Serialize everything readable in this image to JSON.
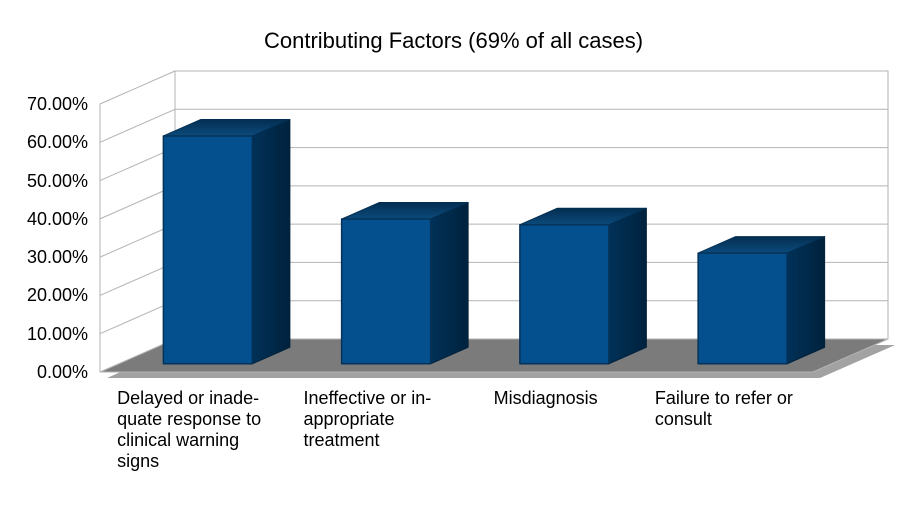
{
  "chart_data": {
    "type": "bar",
    "style": "3d-column",
    "title": "Contributing Factors (69% of all cases)",
    "categories": [
      "Delayed or inadequate response to clinical warning signs",
      "Ineffective or inappropriate treatment",
      "Misdiagnosis",
      "Failure to refer or consult"
    ],
    "category_display_lines": [
      [
        "Delayed or inade-",
        "quate response to",
        "clinical warning",
        "signs"
      ],
      [
        "Ineffective or in-",
        "appropriate",
        "treatment"
      ],
      [
        "Misdiagnosis"
      ],
      [
        "Failure to refer or",
        "consult"
      ]
    ],
    "category_slugs": [
      "delayed-or-inadequate-response-to-clinical-warning-signs",
      "ineffective-or-inappropriate-treatment",
      "misdiagnosis",
      "failure-to-refer-or-consult"
    ],
    "values": [
      59.5,
      37.8,
      36.3,
      28.9
    ],
    "unit": "%",
    "xlabel": "",
    "ylabel": "",
    "ylim": [
      0,
      70
    ],
    "y_tick_step": 10,
    "y_tick_labels": [
      "0.00%",
      "10.00%",
      "20.00%",
      "30.00%",
      "40.00%",
      "50.00%",
      "60.00%",
      "70.00%"
    ],
    "grid": true,
    "legend": null,
    "colors": {
      "bar_front": "#04508e",
      "bar_front_edge": "#063258",
      "bar_top_light": "#0b4a7c",
      "bar_top_dark": "#032e51",
      "bar_side_light": "#013158",
      "bar_side_dark": "#00223d",
      "floor": "#7b7b7b",
      "floor_shadow": "#a2a2a2",
      "wall_fill": "#ffffff",
      "grid_line": "#b3b3b3",
      "text": "#000000",
      "background": "#ffffff"
    }
  }
}
